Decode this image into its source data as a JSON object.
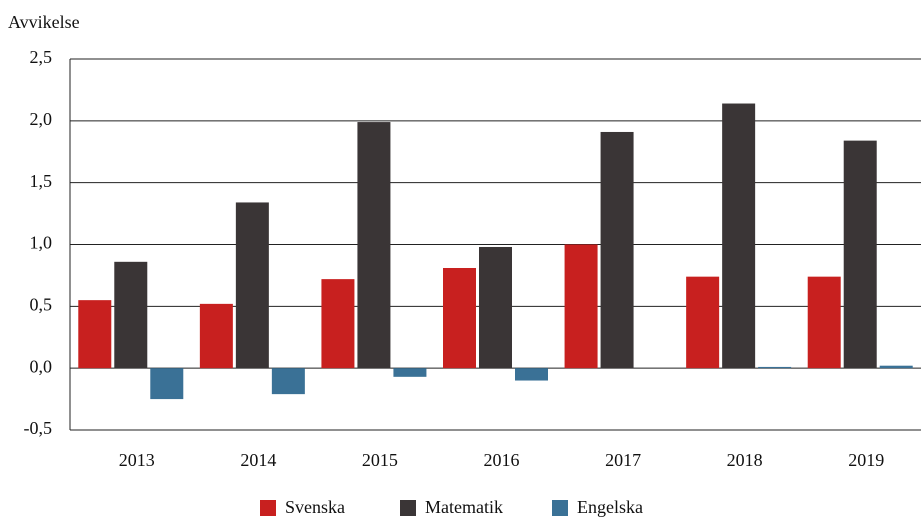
{
  "chart_data": {
    "type": "bar",
    "y_label": "Avvikelse",
    "categories": [
      "2013",
      "2014",
      "2015",
      "2016",
      "2017",
      "2018",
      "2019"
    ],
    "series": [
      {
        "name": "Svenska",
        "color": "#c8201f",
        "values": [
          0.55,
          0.52,
          0.72,
          0.81,
          1.0,
          0.74,
          0.74
        ]
      },
      {
        "name": "Matematik",
        "color": "#3a3536",
        "values": [
          0.86,
          1.34,
          1.99,
          0.98,
          1.91,
          2.14,
          1.84
        ]
      },
      {
        "name": "Engelska",
        "color": "#3a7196",
        "values": [
          -0.25,
          -0.21,
          -0.07,
          -0.1,
          0.0,
          0.01,
          0.02
        ]
      }
    ],
    "ylim": [
      -0.5,
      2.5
    ],
    "yticks": [
      {
        "value": -0.5,
        "label": "-0,5"
      },
      {
        "value": 0,
        "label": "0,0"
      },
      {
        "value": 0.5,
        "label": "0,5"
      },
      {
        "value": 1,
        "label": "1,0"
      },
      {
        "value": 1.5,
        "label": "1,5"
      },
      {
        "value": 2,
        "label": "2,0"
      },
      {
        "value": 2.5,
        "label": "2,5"
      }
    ],
    "grid": true,
    "legend": "bottom"
  }
}
